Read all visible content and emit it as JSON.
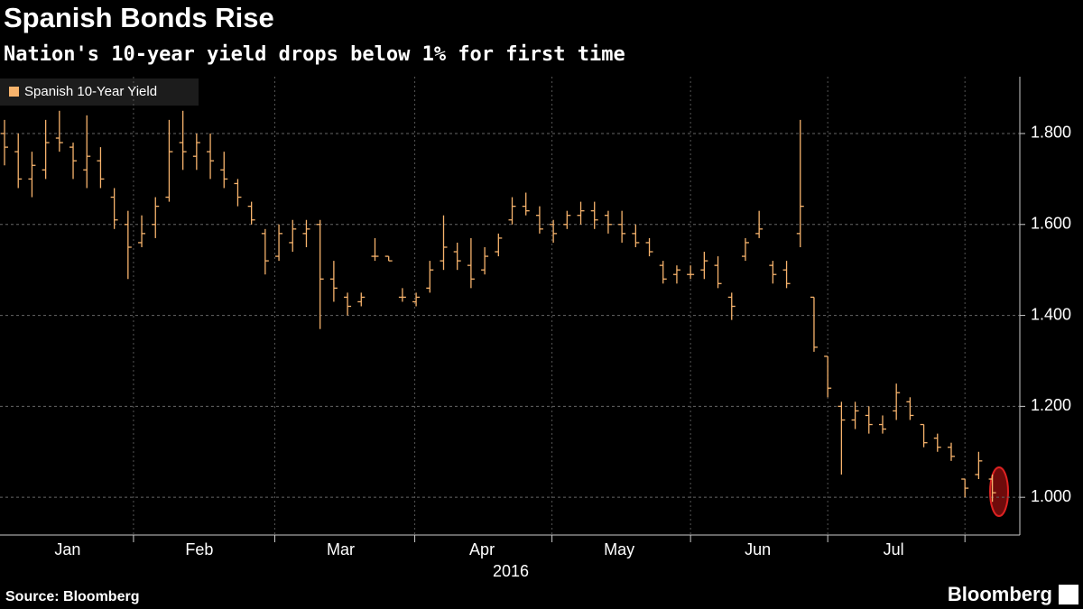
{
  "chart_data": {
    "type": "ohlc",
    "title": "Spanish Bonds Rise",
    "subtitle": "Nation's 10-year yield drops below 1% for first time",
    "source": "Source: Bloomberg",
    "brand": "Bloomberg",
    "x_axis_label": "2016",
    "legend_position": "top-left",
    "grid": true,
    "series": [
      {
        "name": "Spanish 10-Year Yield",
        "color": "#f7b36c",
        "open": [
          1.8,
          1.76,
          1.7,
          1.72,
          1.79,
          1.77,
          1.72,
          1.74,
          1.66,
          1.6,
          1.56,
          1.6,
          1.66,
          1.78,
          1.75,
          1.76,
          1.72,
          1.69,
          1.64,
          1.58,
          1.53,
          1.56,
          1.58,
          1.6,
          1.48,
          1.44,
          1.43,
          1.53,
          1.53,
          1.44,
          1.43,
          1.46,
          1.52,
          1.54,
          1.51,
          1.5,
          1.54,
          1.61,
          1.64,
          1.62,
          1.6,
          1.6,
          1.62,
          1.63,
          1.62,
          1.6,
          1.58,
          1.56,
          1.51,
          1.49,
          1.49,
          1.5,
          1.51,
          1.44,
          1.53,
          1.58,
          1.51,
          1.5,
          1.58,
          1.44,
          1.31,
          1.2,
          1.17,
          1.18,
          1.16,
          1.19,
          1.21,
          1.16,
          1.13,
          1.11,
          1.04,
          1.05,
          1.04
        ],
        "high": [
          1.83,
          1.8,
          1.76,
          1.83,
          1.85,
          1.78,
          1.84,
          1.77,
          1.68,
          1.63,
          1.62,
          1.66,
          1.83,
          1.85,
          1.8,
          1.8,
          1.76,
          1.7,
          1.65,
          1.59,
          1.6,
          1.61,
          1.61,
          1.61,
          1.52,
          1.45,
          1.45,
          1.57,
          1.53,
          1.46,
          1.45,
          1.52,
          1.62,
          1.56,
          1.57,
          1.55,
          1.58,
          1.66,
          1.67,
          1.64,
          1.61,
          1.63,
          1.65,
          1.65,
          1.63,
          1.63,
          1.6,
          1.57,
          1.52,
          1.51,
          1.51,
          1.54,
          1.53,
          1.45,
          1.57,
          1.63,
          1.52,
          1.52,
          1.83,
          1.44,
          1.31,
          1.21,
          1.21,
          1.2,
          1.18,
          1.25,
          1.22,
          1.16,
          1.14,
          1.12,
          1.04,
          1.1,
          1.05
        ],
        "low": [
          1.73,
          1.68,
          1.66,
          1.7,
          1.76,
          1.7,
          1.68,
          1.68,
          1.59,
          1.48,
          1.55,
          1.57,
          1.65,
          1.72,
          1.72,
          1.7,
          1.68,
          1.64,
          1.6,
          1.49,
          1.52,
          1.54,
          1.55,
          1.37,
          1.43,
          1.4,
          1.42,
          1.52,
          1.52,
          1.43,
          1.42,
          1.45,
          1.5,
          1.5,
          1.46,
          1.49,
          1.53,
          1.6,
          1.62,
          1.58,
          1.56,
          1.59,
          1.6,
          1.59,
          1.58,
          1.56,
          1.55,
          1.53,
          1.47,
          1.47,
          1.48,
          1.48,
          1.46,
          1.39,
          1.52,
          1.57,
          1.47,
          1.46,
          1.55,
          1.32,
          1.22,
          1.05,
          1.15,
          1.14,
          1.14,
          1.17,
          1.17,
          1.11,
          1.1,
          1.08,
          1.0,
          1.04,
          0.99
        ],
        "close": [
          1.77,
          1.7,
          1.73,
          1.78,
          1.78,
          1.74,
          1.75,
          1.7,
          1.61,
          1.55,
          1.58,
          1.64,
          1.76,
          1.76,
          1.78,
          1.74,
          1.7,
          1.66,
          1.61,
          1.52,
          1.58,
          1.59,
          1.59,
          1.48,
          1.46,
          1.42,
          1.44,
          1.53,
          1.52,
          1.44,
          1.44,
          1.5,
          1.55,
          1.52,
          1.48,
          1.53,
          1.57,
          1.64,
          1.63,
          1.59,
          1.58,
          1.62,
          1.63,
          1.61,
          1.6,
          1.58,
          1.56,
          1.54,
          1.48,
          1.5,
          1.49,
          1.52,
          1.47,
          1.42,
          1.56,
          1.59,
          1.49,
          1.47,
          1.64,
          1.33,
          1.24,
          1.17,
          1.19,
          1.16,
          1.15,
          1.23,
          1.18,
          1.12,
          1.11,
          1.09,
          1.02,
          1.08,
          1.01
        ]
      }
    ],
    "xlim": [
      -0.33,
      74.0
    ],
    "xticks": [
      9.4,
      19.7,
      29.9,
      39.9,
      50.0,
      60.0,
      70.0
    ],
    "xlabels": [
      {
        "value": 4.6,
        "label": "Jan"
      },
      {
        "value": 14.2,
        "label": "Feb"
      },
      {
        "value": 24.5,
        "label": "Mar"
      },
      {
        "value": 34.8,
        "label": "Apr"
      },
      {
        "value": 44.8,
        "label": "May"
      },
      {
        "value": 54.9,
        "label": "Jun"
      },
      {
        "value": 64.8,
        "label": "Jul"
      }
    ],
    "ylim": [
      0.917,
      1.925
    ],
    "yticks": [
      {
        "value": 1.0,
        "label": "1.000"
      },
      {
        "value": 1.2,
        "label": "1.200"
      },
      {
        "value": 1.4,
        "label": "1.400"
      },
      {
        "value": 1.6,
        "label": "1.600"
      },
      {
        "value": 1.8,
        "label": "1.800"
      }
    ]
  }
}
